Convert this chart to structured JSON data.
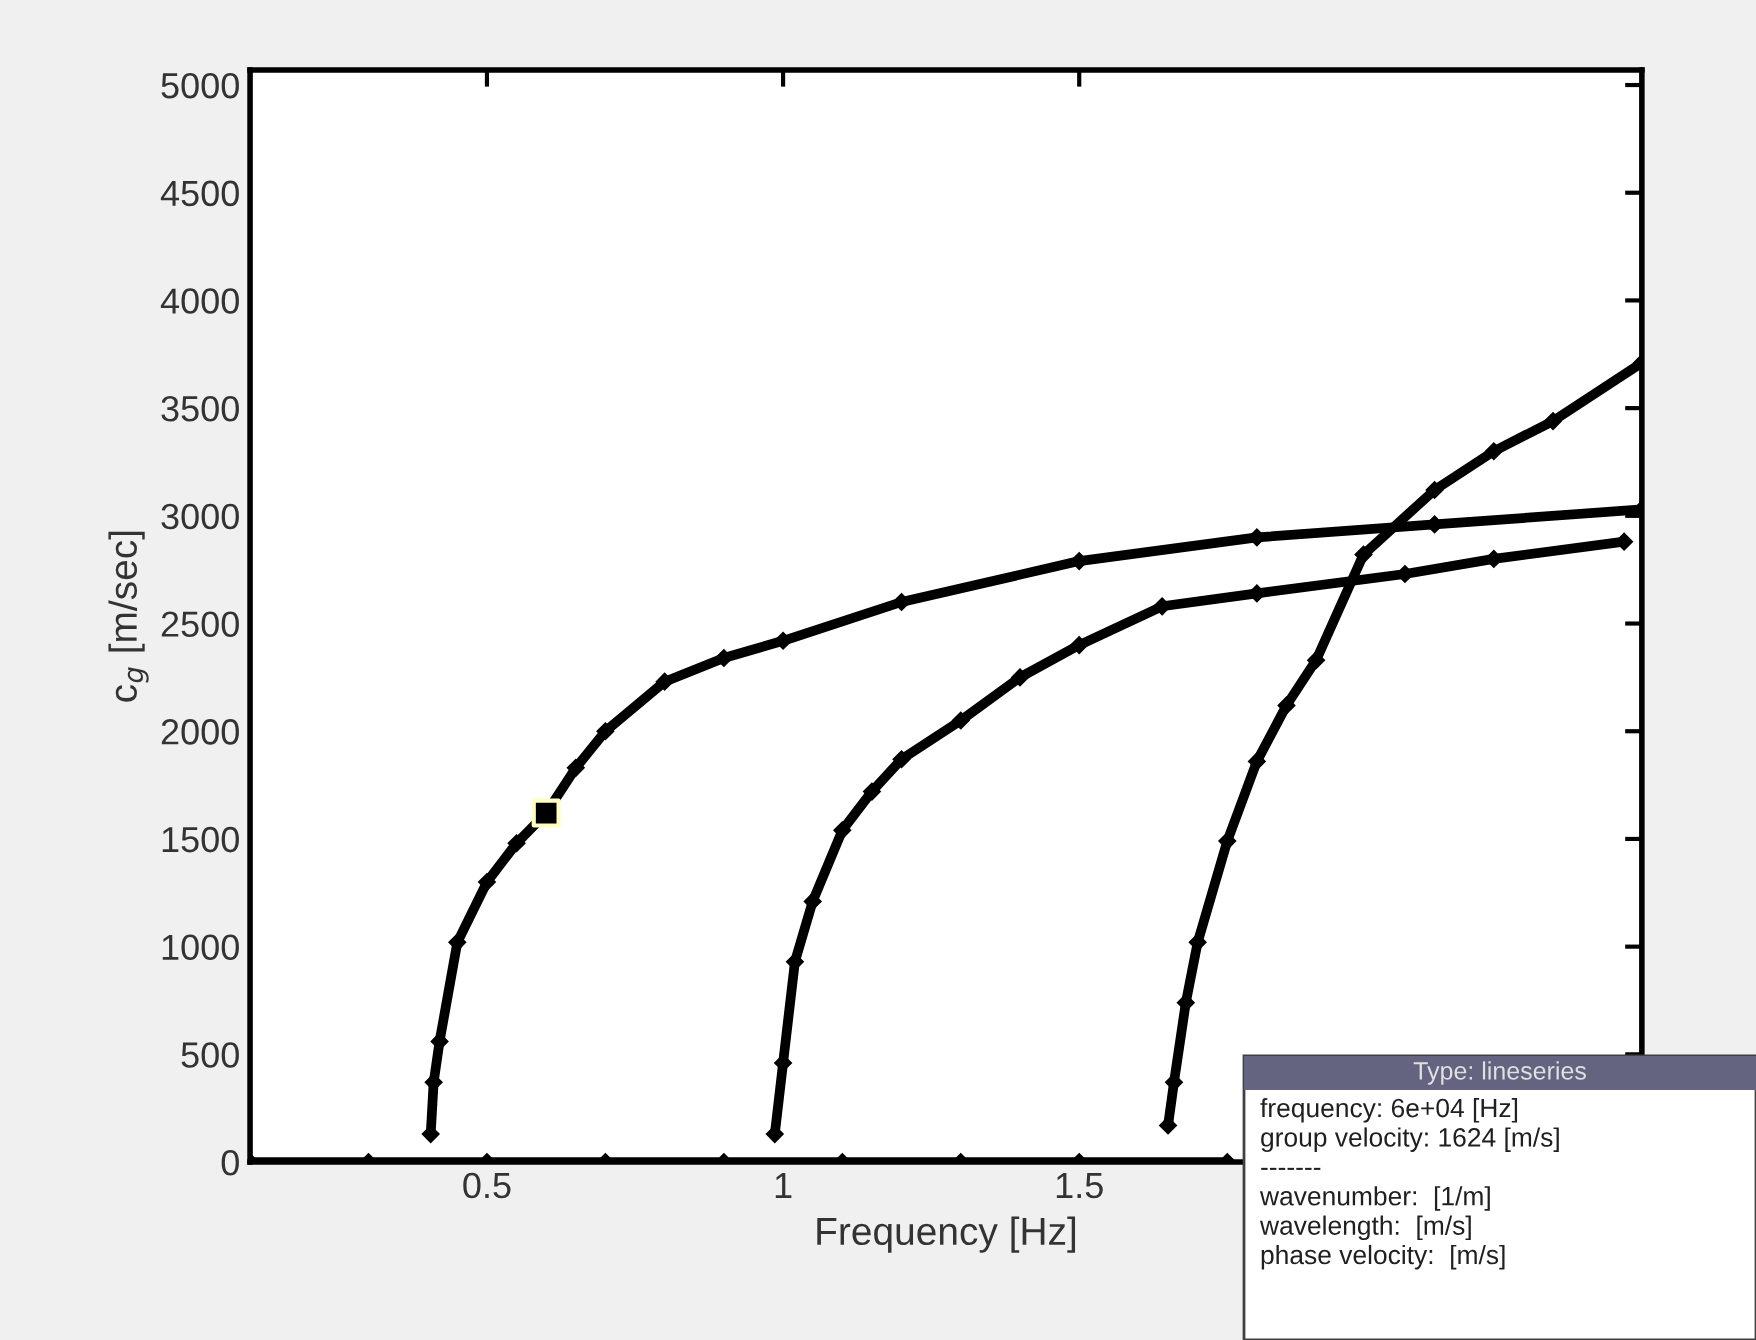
{
  "chart_data": {
    "type": "line",
    "xlabel": "Frequency [Hz]",
    "ylabel": "c$_{g}$ [m/sec]",
    "xlim": [
      0.1,
      2.45
    ],
    "ylim": [
      0,
      5070
    ],
    "xticks": [
      0.5,
      1,
      1.5
    ],
    "yticks": [
      0,
      500,
      1000,
      1500,
      2000,
      2500,
      3000,
      3500,
      4000,
      4500,
      5000
    ],
    "marker": "diamond",
    "grid": false,
    "legend": false,
    "series": [
      {
        "color": "#000000",
        "x": [
          0.405,
          0.41,
          0.42,
          0.45,
          0.5,
          0.55,
          0.6,
          0.65,
          0.7,
          0.8,
          0.9,
          1.0,
          1.2,
          1.5,
          1.8,
          2.1,
          2.45
        ],
        "values": [
          130,
          370,
          560,
          1020,
          1300,
          1480,
          1620,
          1830,
          2000,
          2230,
          2340,
          2420,
          2600,
          2790,
          2900,
          2960,
          3030
        ]
      },
      {
        "color": "#000000",
        "x": [
          0.986,
          1.0,
          1.02,
          1.05,
          1.1,
          1.15,
          1.2,
          1.3,
          1.4,
          1.5,
          1.64,
          1.8,
          2.05,
          2.2,
          2.42
        ],
        "values": [
          130,
          460,
          930,
          1210,
          1540,
          1720,
          1870,
          2050,
          2250,
          2400,
          2580,
          2640,
          2730,
          2800,
          2880
        ]
      },
      {
        "color": "#000000",
        "x": [
          1.65,
          1.66,
          1.68,
          1.7,
          1.75,
          1.8,
          1.85,
          1.9,
          1.98,
          2.1,
          2.2,
          2.3,
          2.45
        ],
        "values": [
          170,
          370,
          740,
          1020,
          1490,
          1860,
          2120,
          2330,
          2820,
          3120,
          3300,
          3440,
          3710
        ]
      },
      {
        "color": "#000000",
        "x": [
          0.1,
          0.3,
          0.5,
          0.7,
          0.9,
          1.1,
          1.3,
          1.5,
          1.75
        ],
        "values": [
          0,
          0,
          0,
          0,
          0,
          0,
          0,
          0,
          0
        ]
      },
      {
        "type": "scatter",
        "marker": "square",
        "color": "#000000",
        "x": [
          0.6
        ],
        "values": [
          1620
        ]
      }
    ],
    "annotations": [
      "Type: lineseries",
      "frequency: 6e+04 [Hz]\ngroup velocity: 1624 [m/s]\n-------\nwavenumber:  [1/m]\nwavelength:  [m/s]\nphase velocity:  [m/s]"
    ]
  }
}
